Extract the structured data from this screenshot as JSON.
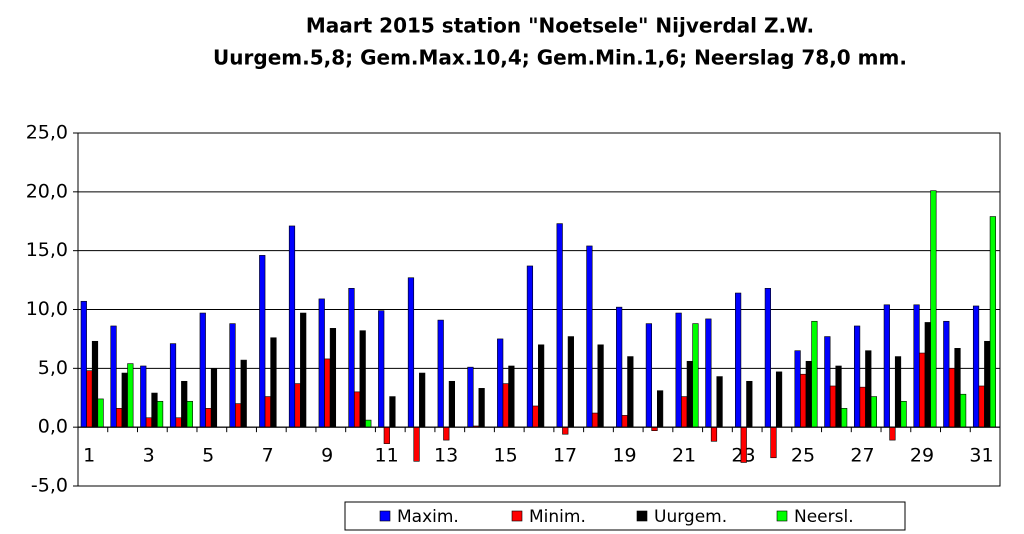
{
  "chart_data": {
    "type": "bar",
    "title": "Maart 2015 station \"Noetsele\" Nijverdal Z.W.",
    "subtitle": "Uurgem.5,8; Gem.Max.10,4; Gem.Min.1,6; Neerslag 78,0 mm.",
    "categories": [
      "1",
      null,
      "3",
      null,
      "5",
      null,
      "7",
      null,
      "9",
      null,
      "11",
      null,
      "13",
      null,
      "15",
      null,
      "17",
      null,
      "19",
      null,
      "21",
      null,
      "23",
      null,
      "25",
      null,
      "27",
      null,
      "29",
      null,
      "31"
    ],
    "series": [
      {
        "name": "Maxim.",
        "color": "#0000ff",
        "values": [
          10.7,
          8.6,
          5.2,
          7.1,
          9.7,
          8.8,
          14.6,
          17.1,
          10.9,
          11.8,
          9.9,
          12.7,
          9.1,
          5.1,
          7.5,
          13.7,
          17.3,
          15.4,
          10.2,
          8.8,
          9.7,
          9.2,
          11.4,
          11.8,
          6.5,
          7.7,
          8.6,
          10.4,
          10.4,
          9.0,
          10.3
        ]
      },
      {
        "name": "Minim.",
        "color": "#ff0000",
        "values": [
          4.8,
          1.6,
          0.8,
          0.8,
          1.6,
          2.0,
          2.6,
          3.7,
          5.8,
          3.0,
          -1.4,
          -2.9,
          -1.1,
          0.1,
          3.7,
          1.8,
          -0.6,
          1.2,
          1.0,
          -0.3,
          2.6,
          -1.2,
          -3.0,
          -2.6,
          4.5,
          3.5,
          3.4,
          -1.1,
          6.3,
          5.0,
          3.5
        ]
      },
      {
        "name": "Uurgem.",
        "color": "#000000",
        "values": [
          7.3,
          4.6,
          2.9,
          3.9,
          5.0,
          5.7,
          7.6,
          9.7,
          8.4,
          8.2,
          2.6,
          4.6,
          3.9,
          3.3,
          5.2,
          7.0,
          7.7,
          7.0,
          6.0,
          3.1,
          5.6,
          4.3,
          3.9,
          4.7,
          5.6,
          5.2,
          6.5,
          6.0,
          8.9,
          6.7,
          7.3
        ]
      },
      {
        "name": "Neersl.",
        "color": "#00ff00",
        "values": [
          2.4,
          5.4,
          2.2,
          2.2,
          0,
          0,
          0,
          0,
          0,
          0.6,
          0,
          0,
          0,
          0,
          0,
          0,
          0,
          0,
          0,
          0,
          8.8,
          0,
          0,
          0,
          9.0,
          1.6,
          2.6,
          2.2,
          20.1,
          2.8,
          17.9
        ]
      }
    ],
    "ylim": [
      -5,
      25
    ],
    "yticks": [
      {
        "value": -5,
        "label": "-5,0"
      },
      {
        "value": 0,
        "label": "0,0"
      },
      {
        "value": 5,
        "label": "5,0"
      },
      {
        "value": 10,
        "label": "10,0"
      },
      {
        "value": 15,
        "label": "15,0"
      },
      {
        "value": 20,
        "label": "20,0"
      },
      {
        "value": 25,
        "label": "25,0"
      }
    ],
    "grid": true
  }
}
